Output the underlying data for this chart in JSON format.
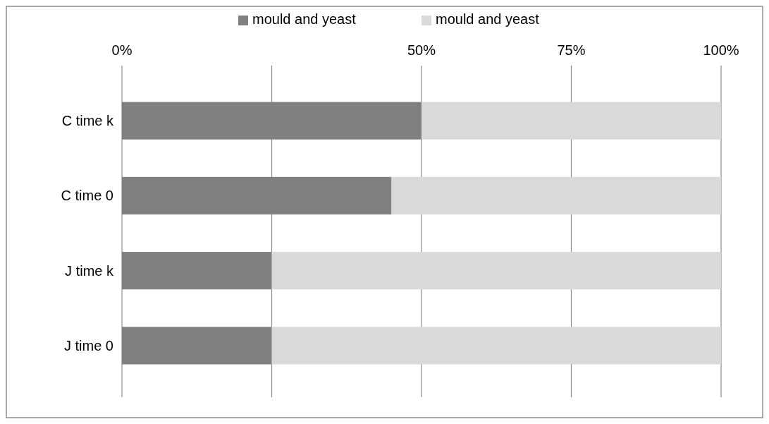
{
  "chart_data": {
    "type": "bar",
    "orientation": "horizontal",
    "stacked": true,
    "categories": [
      "C time k",
      "C time 0",
      "J time k",
      "J time 0"
    ],
    "series": [
      {
        "name": "mould and yeast",
        "color": "#808080",
        "values": [
          50,
          45,
          25,
          25
        ]
      },
      {
        "name": "mould and yeast",
        "color": "#d9d9d9",
        "values": [
          50,
          55,
          75,
          75
        ]
      }
    ],
    "xlim": [
      0,
      100
    ],
    "xticks": [
      {
        "value": 0,
        "label": "0%"
      },
      {
        "value": 25,
        "label": null
      },
      {
        "value": 50,
        "label": "50%"
      },
      {
        "value": 75,
        "label": "75%"
      },
      {
        "value": 100,
        "label": "100%"
      }
    ],
    "grid": "x",
    "legend": "top"
  }
}
